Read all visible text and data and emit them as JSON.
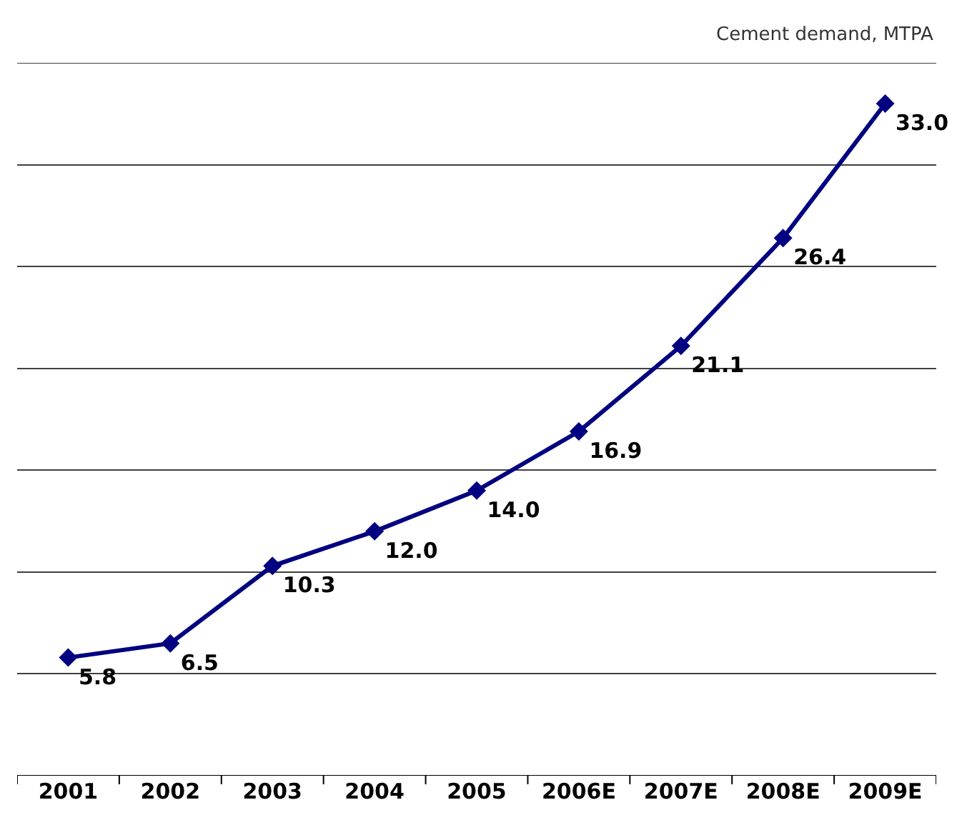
{
  "chart_data": {
    "type": "line",
    "ylabel": "Cement demand, MTPA",
    "categories": [
      "2001",
      "2002",
      "2003",
      "2004",
      "2005",
      "2006E",
      "2007E",
      "2008E",
      "2009E"
    ],
    "series": [
      {
        "color": "#000080",
        "values": [
          5.8,
          6.5,
          10.3,
          12.0,
          14.0,
          16.9,
          21.1,
          26.4,
          33.0
        ],
        "value_labels": [
          "5.8",
          "6.5",
          "10.3",
          "12.0",
          "14.0",
          "16.9",
          "21.1",
          "26.4",
          "33.0"
        ]
      }
    ],
    "ylim": [
      0,
      35
    ],
    "tick_labels": "x",
    "grid": "y",
    "marker": "diamond",
    "line_style": "solid"
  }
}
